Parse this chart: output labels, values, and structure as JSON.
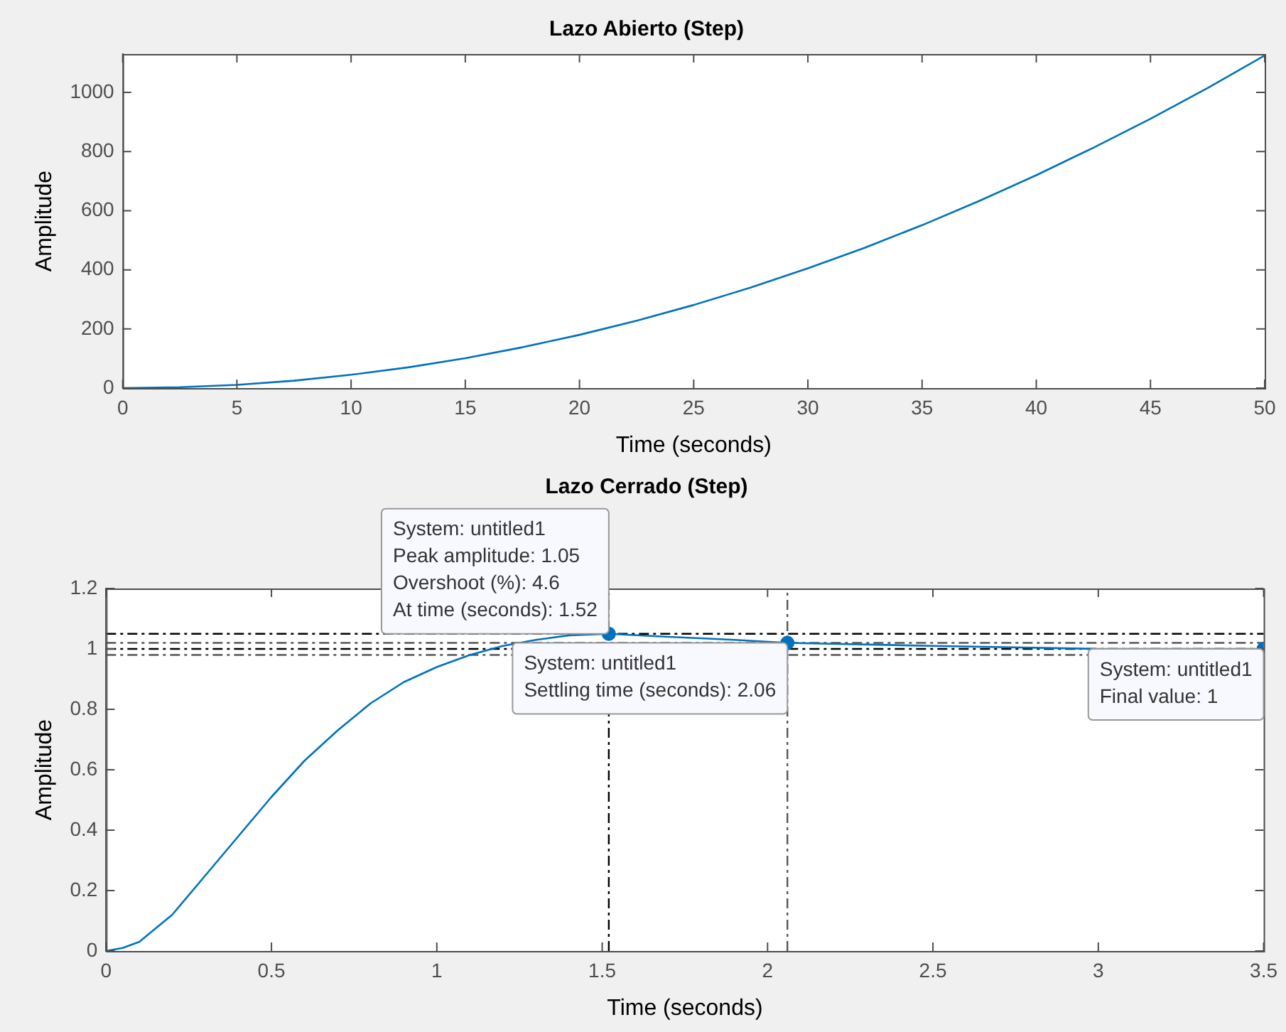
{
  "chart_data": [
    {
      "type": "line",
      "title": "Lazo Abierto (Step)",
      "xlabel": "Time (seconds)",
      "ylabel": "Amplitude",
      "x": [
        0,
        2.5,
        5,
        7.5,
        10,
        12.5,
        15,
        17.5,
        20,
        22.5,
        25,
        27.5,
        30,
        32.5,
        35,
        37.5,
        40,
        42.5,
        45,
        47.5,
        50
      ],
      "series": [
        {
          "color": "#0072bd",
          "values": [
            0,
            3,
            11,
            25,
            45,
            70,
            101,
            138,
            180,
            228,
            281,
            340,
            405,
            475,
            551,
            633,
            720,
            813,
            911,
            1015,
            1125
          ]
        }
      ],
      "xlim": [
        0,
        50
      ],
      "xticks": [
        0,
        5,
        10,
        15,
        20,
        25,
        30,
        35,
        40,
        45,
        50
      ],
      "ylim": [
        0,
        1130
      ],
      "yticks": [
        0,
        200,
        400,
        600,
        800,
        1000
      ],
      "grid": false,
      "legend": false
    },
    {
      "type": "line",
      "title": "Lazo Cerrado (Step)",
      "xlabel": "Time (seconds)",
      "ylabel": "Amplitude",
      "x": [
        0,
        0.05,
        0.1,
        0.2,
        0.3,
        0.4,
        0.5,
        0.6,
        0.7,
        0.8,
        0.9,
        1,
        1.1,
        1.2,
        1.3,
        1.4,
        1.52,
        1.7,
        1.9,
        2.06,
        2.5,
        3,
        3.5
      ],
      "series": [
        {
          "color": "#0072bd",
          "values": [
            0,
            0.01,
            0.03,
            0.12,
            0.25,
            0.38,
            0.51,
            0.63,
            0.73,
            0.82,
            0.89,
            0.94,
            0.98,
            1.01,
            1.03,
            1.045,
            1.05,
            1.04,
            1.03,
            1.02,
            1.01,
            1,
            1
          ]
        },
        {
          "type": "scatter",
          "color": "#0072bd",
          "x": [
            1.52,
            2.06,
            3.5
          ],
          "values": [
            1.05,
            1.02,
            1
          ],
          "marker": "circle"
        }
      ],
      "ref_lines": [
        {
          "axis": "y",
          "value": 1.05,
          "color": "#000000"
        },
        {
          "axis": "y",
          "value": 1.02,
          "color": "#555555"
        },
        {
          "axis": "y",
          "value": 1,
          "color": "#000000"
        },
        {
          "axis": "y",
          "value": 0.98,
          "color": "#555555"
        },
        {
          "axis": "x",
          "value": 1.52,
          "color": "#000000"
        },
        {
          "axis": "x",
          "value": 2.06,
          "color": "#555555"
        }
      ],
      "annotations": [
        {
          "text": "System: untitled1\nPeak amplitude: 1.05\nOvershoot (%): 4.6\nAt time (seconds): 1.52",
          "x": 1.52,
          "y": 1.05
        },
        {
          "text": "System: untitled1\nSettling time (seconds): 2.06",
          "x": 2.06,
          "y": 1.02
        },
        {
          "text": "System: untitled1\nFinal value: 1",
          "x": 3.5,
          "y": 1
        }
      ],
      "xlim": [
        0,
        3.5
      ],
      "xticks": [
        0,
        0.5,
        1,
        1.5,
        2,
        2.5,
        3,
        3.5
      ],
      "ylim": [
        0,
        1.2
      ],
      "yticks": [
        0,
        0.2,
        0.4,
        0.6,
        0.8,
        1,
        1.2
      ],
      "grid": false,
      "legend": false
    }
  ]
}
